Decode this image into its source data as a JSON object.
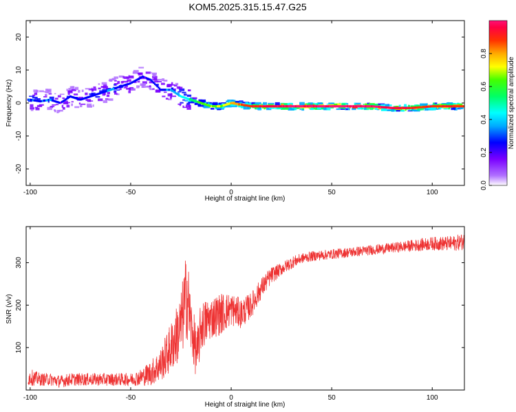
{
  "title": "KOM5.2025.315.15.47.G25",
  "chart_data": [
    {
      "type": "heatmap",
      "xlabel": "Height of straight line (km)",
      "ylabel": "Frequency (Hz)",
      "xlim": [
        -102,
        116
      ],
      "ylim": [
        -25,
        25
      ],
      "xticks": [
        -100,
        -50,
        0,
        50,
        100
      ],
      "yticks": [
        -20,
        -10,
        0,
        10,
        20
      ],
      "colorbar": {
        "label": "Normalized spectral amplitude",
        "range": [
          0,
          1
        ],
        "ticks": [
          0.0,
          0.2,
          0.4,
          0.6,
          0.8
        ],
        "tick_labels": [
          "0.0",
          "0.2",
          "0.4",
          "0.6",
          "0.8"
        ]
      },
      "ridge": {
        "x": [
          -100,
          -95,
          -90,
          -85,
          -80,
          -75,
          -70,
          -65,
          -60,
          -55,
          -50,
          -47,
          -44,
          -40,
          -35,
          -30,
          -25,
          -20,
          -15,
          -10,
          -5,
          0,
          10,
          20,
          30,
          50,
          70,
          80,
          90,
          100,
          110,
          116
        ],
        "freq": [
          1,
          0.5,
          1,
          0,
          2,
          1,
          2,
          3,
          4,
          5,
          6,
          7,
          8,
          7,
          4,
          4,
          2,
          1,
          0,
          -1,
          -1,
          0,
          -1,
          -1,
          -1,
          -1,
          -1,
          -1.5,
          -1.5,
          -1,
          -1,
          -1
        ],
        "amplitude": [
          0.25,
          0.2,
          0.25,
          0.15,
          0.2,
          0.15,
          0.2,
          0.2,
          0.25,
          0.2,
          0.2,
          0.15,
          0.15,
          0.15,
          0.2,
          0.25,
          0.35,
          0.45,
          0.55,
          0.6,
          0.6,
          0.7,
          0.85,
          0.9,
          0.95,
          0.95,
          0.95,
          0.9,
          0.85,
          0.85,
          0.85,
          0.8
        ]
      }
    },
    {
      "type": "line",
      "xlabel": "Height of straight line (km)",
      "ylabel": "SNR (v/v)",
      "xlim": [
        -102,
        116
      ],
      "ylim": [
        0,
        385
      ],
      "xticks": [
        -100,
        -50,
        0,
        50,
        100
      ],
      "yticks": [
        100,
        200,
        300
      ],
      "color": "#ee3333",
      "series": [
        {
          "x": [
            -100,
            -95,
            -90,
            -85,
            -80,
            -75,
            -70,
            -65,
            -60,
            -55,
            -50,
            -45,
            -40,
            -35,
            -30,
            -25,
            -22,
            -20,
            -17,
            -15,
            -10,
            -5,
            0,
            5,
            10,
            15,
            20,
            25,
            30,
            35,
            40,
            50,
            60,
            70,
            80,
            90,
            100,
            110,
            116
          ],
          "y": [
            30,
            25,
            25,
            20,
            25,
            25,
            25,
            25,
            25,
            25,
            25,
            30,
            40,
            60,
            100,
            150,
            230,
            150,
            80,
            150,
            170,
            180,
            190,
            180,
            200,
            240,
            270,
            285,
            300,
            310,
            315,
            320,
            325,
            330,
            335,
            340,
            345,
            345,
            350
          ],
          "spread": [
            20,
            15,
            15,
            15,
            15,
            15,
            15,
            15,
            15,
            15,
            15,
            20,
            30,
            40,
            60,
            80,
            110,
            70,
            60,
            60,
            50,
            50,
            40,
            35,
            30,
            25,
            20,
            15,
            15,
            12,
            12,
            12,
            12,
            12,
            12,
            14,
            16,
            18,
            20
          ]
        }
      ]
    }
  ]
}
